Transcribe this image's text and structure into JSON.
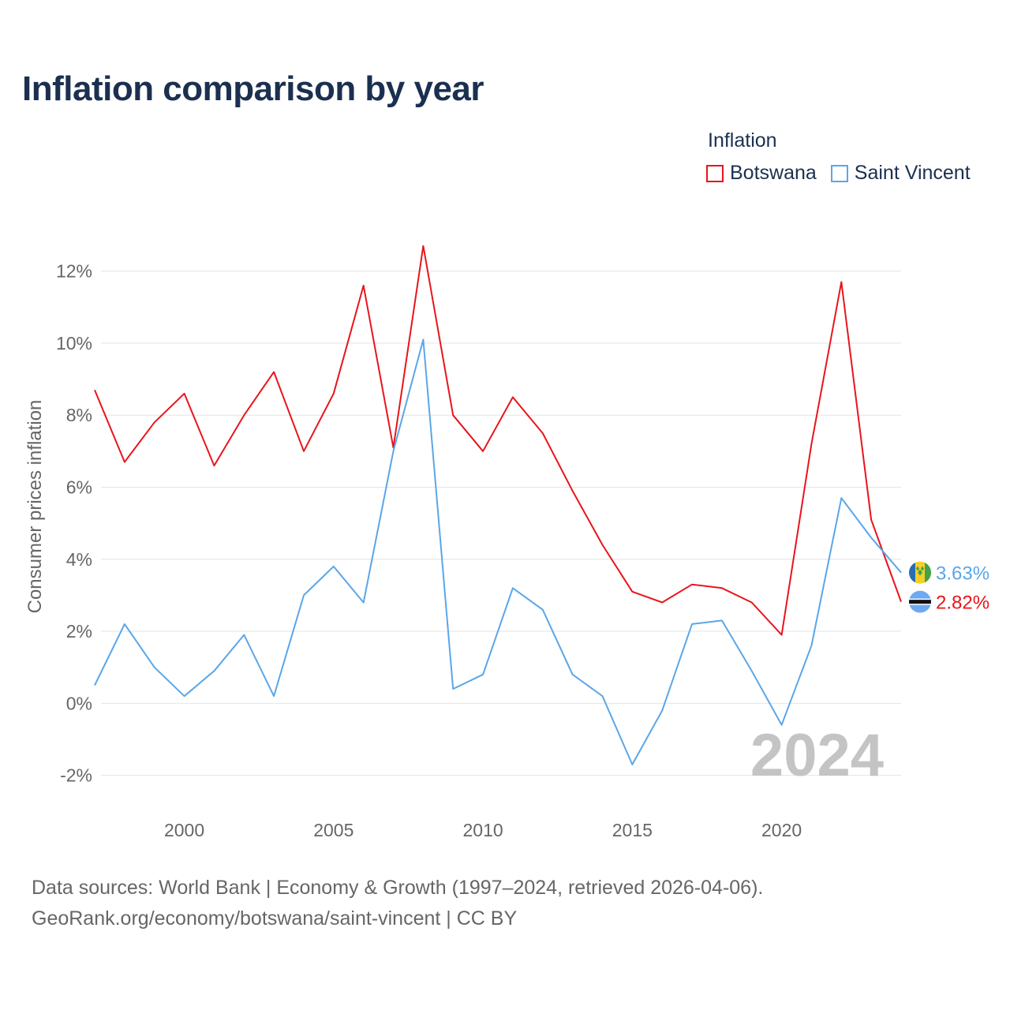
{
  "title": "Inflation comparison by year",
  "legend": {
    "title": "Inflation",
    "items": [
      {
        "label": "Botswana",
        "color": "#e8151b"
      },
      {
        "label": "Saint Vincent",
        "color": "#5aa6e8"
      }
    ]
  },
  "chart_data": {
    "type": "line",
    "title": "Inflation comparison by year",
    "xlabel": "",
    "ylabel": "Consumer prices inflation",
    "x": [
      1997,
      1998,
      1999,
      2000,
      2001,
      2002,
      2003,
      2004,
      2005,
      2006,
      2007,
      2008,
      2009,
      2010,
      2011,
      2012,
      2013,
      2014,
      2015,
      2016,
      2017,
      2018,
      2019,
      2020,
      2021,
      2022,
      2023,
      2024
    ],
    "xlim": [
      1997,
      2024
    ],
    "ylim": [
      -2.6,
      13.0
    ],
    "xticks": [
      2000,
      2005,
      2010,
      2015,
      2020
    ],
    "xtick_labels": [
      "2000",
      "2005",
      "2010",
      "2015",
      "2020"
    ],
    "yticks": [
      -2,
      0,
      2,
      4,
      6,
      8,
      10,
      12
    ],
    "ytick_labels": [
      "-2%",
      "0%",
      "2%",
      "4%",
      "6%",
      "8%",
      "10%",
      "12%"
    ],
    "grid": true,
    "legend_position": "top-right",
    "watermark_year": "2024",
    "series": [
      {
        "name": "Botswana",
        "color": "#e8151b",
        "values": [
          8.7,
          6.7,
          7.8,
          8.6,
          6.6,
          8.0,
          9.2,
          7.0,
          8.6,
          11.6,
          7.1,
          12.7,
          8.0,
          7.0,
          8.5,
          7.5,
          5.9,
          4.4,
          3.1,
          2.8,
          3.3,
          3.2,
          2.8,
          1.9,
          7.2,
          11.7,
          5.1,
          2.82
        ],
        "end_label": "2.82%"
      },
      {
        "name": "Saint Vincent",
        "color": "#5aa6e8",
        "values": [
          0.5,
          2.2,
          1.0,
          0.2,
          0.9,
          1.9,
          0.2,
          3.0,
          3.8,
          2.8,
          7.0,
          10.1,
          0.4,
          0.8,
          3.2,
          2.6,
          0.8,
          0.2,
          -1.7,
          -0.2,
          2.2,
          2.3,
          0.9,
          -0.6,
          1.6,
          5.7,
          4.6,
          3.63
        ],
        "end_label": "3.63%"
      }
    ]
  },
  "footer": {
    "line1": "Data sources: World Bank | Economy & Growth (1997–2024, retrieved 2026-04-06).",
    "line2": "GeoRank.org/economy/botswana/saint-vincent | CC BY"
  }
}
